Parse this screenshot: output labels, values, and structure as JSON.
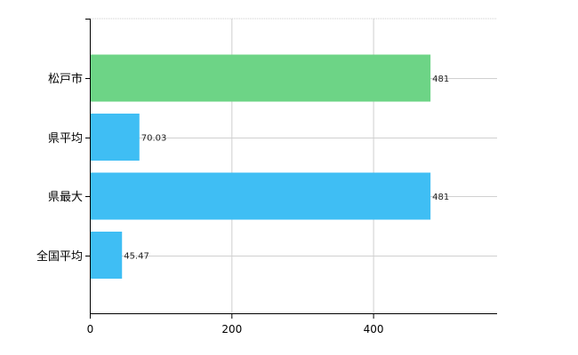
{
  "chart_data": {
    "type": "bar",
    "orientation": "horizontal",
    "categories": [
      "松戸市",
      "県平均",
      "県最大",
      "全国平均"
    ],
    "values": [
      481,
      70.03,
      481,
      45.47
    ],
    "value_labels": [
      "481",
      "70.03",
      "481",
      "45.47"
    ],
    "bar_colors": [
      "#6dd486",
      "#3fbef4",
      "#3fbef4",
      "#3fbef4"
    ],
    "xlim": [
      0,
      575
    ],
    "xticks": [
      0,
      200,
      400
    ],
    "xtick_labels": [
      "0",
      "200",
      "400"
    ],
    "grid": true,
    "legend": "none"
  }
}
